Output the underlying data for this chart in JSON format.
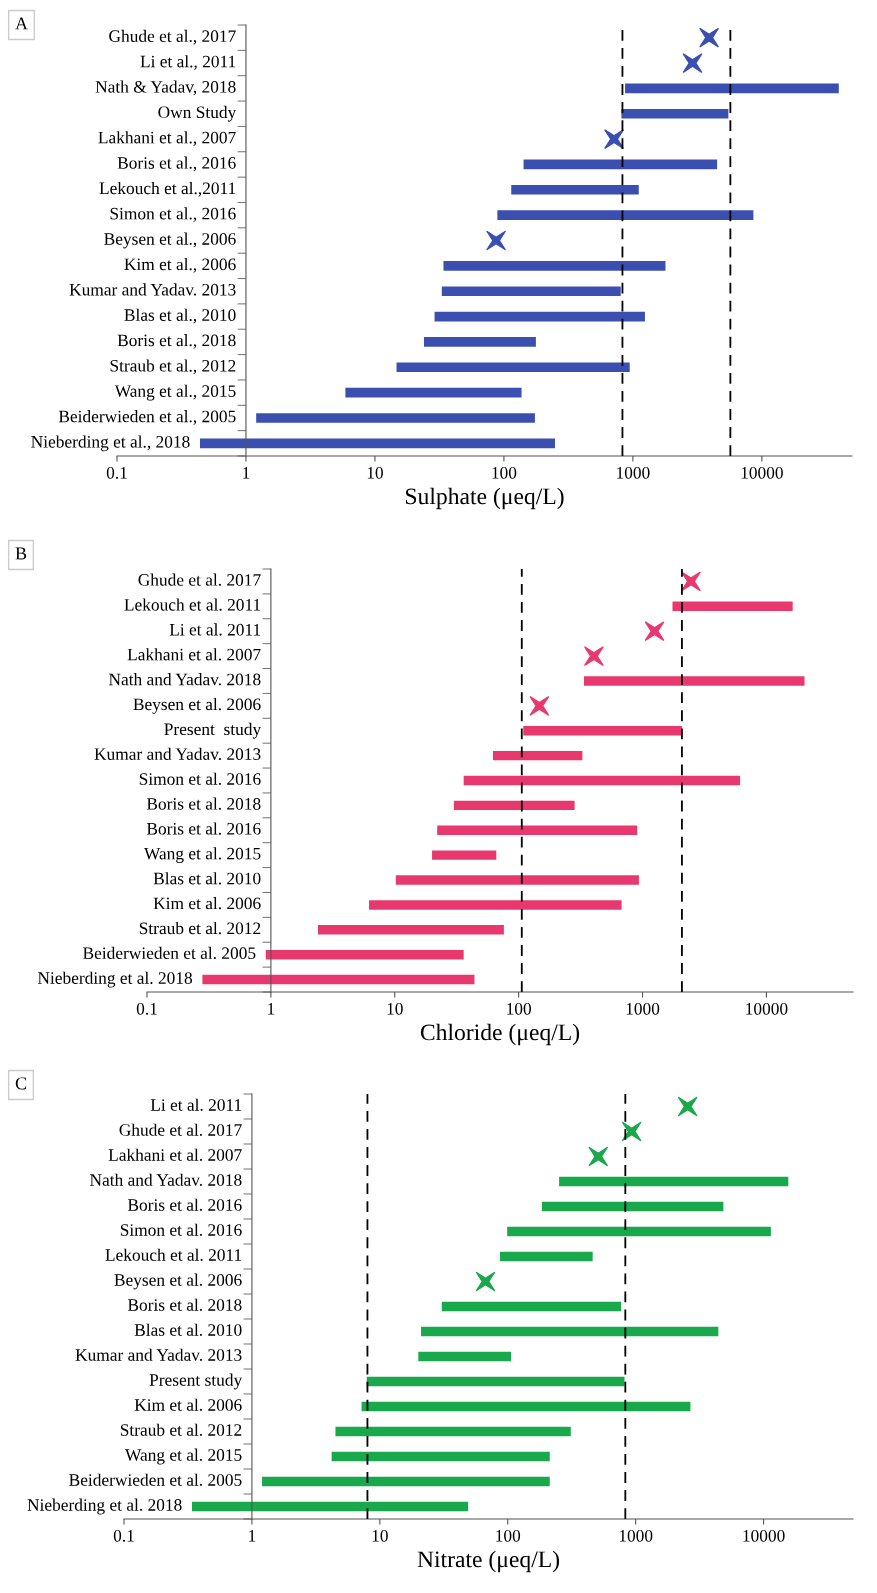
{
  "chart_data": [
    {
      "type": "bar",
      "orientation": "horizontal",
      "title": "A",
      "xlabel": "Sulphate (μeq/L)",
      "log": "x",
      "xlim": [
        0.1,
        50000
      ],
      "xticks": [
        0.1,
        1,
        10,
        100,
        1000,
        10000
      ],
      "grid": false,
      "legend": false,
      "marker": "star",
      "categories": [
        "Ghude et al., 2017",
        "Li et al., 2011",
        "Nath & Yadav, 2018",
        "Own Study",
        "Lakhani et al., 2007",
        "Boris et al., 2016",
        "Lekouch et al.,2011",
        "Simon et al., 2016",
        "Beysen et al., 2006",
        "Kim et al., 2006",
        "Kumar and Yadav. 2013",
        "Blas et al., 2010",
        "Boris et al., 2018",
        "Straub et al., 2012",
        "Wang et al., 2015",
        "Beiderwieden et al., 2005",
        "Nieberding et al., 2018"
      ],
      "series": [
        {
          "color": "#3a4fb0",
          "base": [
            null,
            null,
            870,
            815,
            null,
            142,
            114,
            89,
            null,
            34,
            33,
            29,
            24,
            14.7,
            5.9,
            1.2,
            0.44
          ],
          "values": [
            null,
            null,
            38630,
            4685,
            null,
            4358,
            996,
            8511,
            null,
            1756,
            772,
            1211,
            153,
            930.3,
            131.1,
            172.8,
            248.56
          ]
        },
        {
          "type": "scatter",
          "color": "#3a4fb0",
          "values": [
            3900,
            2900,
            null,
            null,
            715,
            null,
            null,
            null,
            87,
            null,
            null,
            null,
            null,
            null,
            null,
            null,
            null
          ]
        }
      ],
      "ref_lines": [
        {
          "axis": "x",
          "value": 830,
          "color": "#000000",
          "line_style": "dashed"
        },
        {
          "axis": "x",
          "value": 5700,
          "color": "#000000",
          "line_style": "dashed"
        }
      ]
    },
    {
      "type": "bar",
      "orientation": "horizontal",
      "title": "B",
      "xlabel": "Chloride (μeq/L)",
      "log": "x",
      "xlim": [
        0.1,
        50000
      ],
      "xticks": [
        0.1,
        1,
        10,
        100,
        1000,
        10000
      ],
      "grid": false,
      "legend": false,
      "marker": "star",
      "categories": [
        "Ghude et al. 2017",
        "Lekouch et al. 2011",
        "Li et al. 2011",
        "Lakhani et al. 2007",
        "Nath and Yadav. 2018",
        "Beysen et al. 2006",
        "Present  study",
        "Kumar and Yadav. 2013",
        "Simon et al. 2016",
        "Boris et al. 2018",
        "Boris et al. 2016",
        "Wang et al. 2015",
        "Blas et al. 2010",
        "Kim et al. 2006",
        "Straub et al. 2012",
        "Beiderwieden et al. 2005",
        "Nieberding et al. 2018"
      ],
      "series": [
        {
          "color": "#e8396f",
          "base": [
            null,
            1745,
            null,
            null,
            337,
            null,
            109,
            62,
            36,
            30,
            22,
            20,
            10.2,
            6.2,
            2.4,
            0.91,
            0.28
          ],
          "values": [
            null,
            14555,
            null,
            null,
            19963,
            null,
            1971,
            265,
            6094,
            253,
            884,
            46,
            924.8,
            671.8,
            73.6,
            35.09,
            43.72
          ]
        },
        {
          "type": "scatter",
          "color": "#e8396f",
          "values": [
            2460,
            null,
            1250,
            405,
            null,
            147,
            null,
            null,
            null,
            null,
            null,
            null,
            null,
            null,
            null,
            null,
            null
          ]
        }
      ],
      "ref_lines": [
        {
          "axis": "x",
          "value": 106,
          "color": "#000000",
          "line_style": "dashed"
        },
        {
          "axis": "x",
          "value": 2080,
          "color": "#000000",
          "line_style": "dashed"
        }
      ]
    },
    {
      "type": "bar",
      "orientation": "horizontal",
      "title": "C",
      "xlabel": "Nitrate (μeq/L)",
      "log": "x",
      "xlim": [
        0.1,
        50000
      ],
      "xticks": [
        0.1,
        1,
        10,
        100,
        1000,
        10000
      ],
      "grid": false,
      "legend": false,
      "marker": "star",
      "categories": [
        "Li et al. 2011",
        "Ghude et al. 2017",
        "Lakhani et al. 2007",
        "Nath and Yadav. 2018",
        "Boris et al. 2016",
        "Simon et al. 2016",
        "Lekouch et al. 2011",
        "Beysen et al. 2006",
        "Boris et al. 2018",
        "Blas et al. 2010",
        "Kumar and Yadav. 2013",
        "Present study",
        "Kim et al. 2006",
        "Straub et al. 2012",
        "Wang et al. 2015",
        "Beiderwieden et al. 2005",
        "Nieberding et al. 2018"
      ],
      "series": [
        {
          "color": "#1aa84c",
          "base": [
            null,
            null,
            null,
            252,
            185,
            99,
            87,
            null,
            30.5,
            21,
            20,
            7.9,
            7.2,
            4.5,
            4.2,
            1.2,
            0.34
          ],
          "values": [
            null,
            null,
            null,
            15348,
            4665,
            11301,
            374,
            null,
            739.5,
            4409,
            86,
            810.1,
            2672.8,
            306.5,
            208.8,
            211.8,
            48.66
          ]
        },
        {
          "type": "scatter",
          "color": "#1aa84c",
          "values": [
            2550,
            930,
            510,
            null,
            null,
            null,
            null,
            67,
            null,
            null,
            null,
            null,
            null,
            null,
            null,
            null,
            null
          ]
        }
      ],
      "ref_lines": [
        {
          "axis": "x",
          "value": 8,
          "color": "#000000",
          "line_style": "dashed"
        },
        {
          "axis": "x",
          "value": 830,
          "color": "#000000",
          "line_style": "dashed"
        }
      ]
    }
  ]
}
